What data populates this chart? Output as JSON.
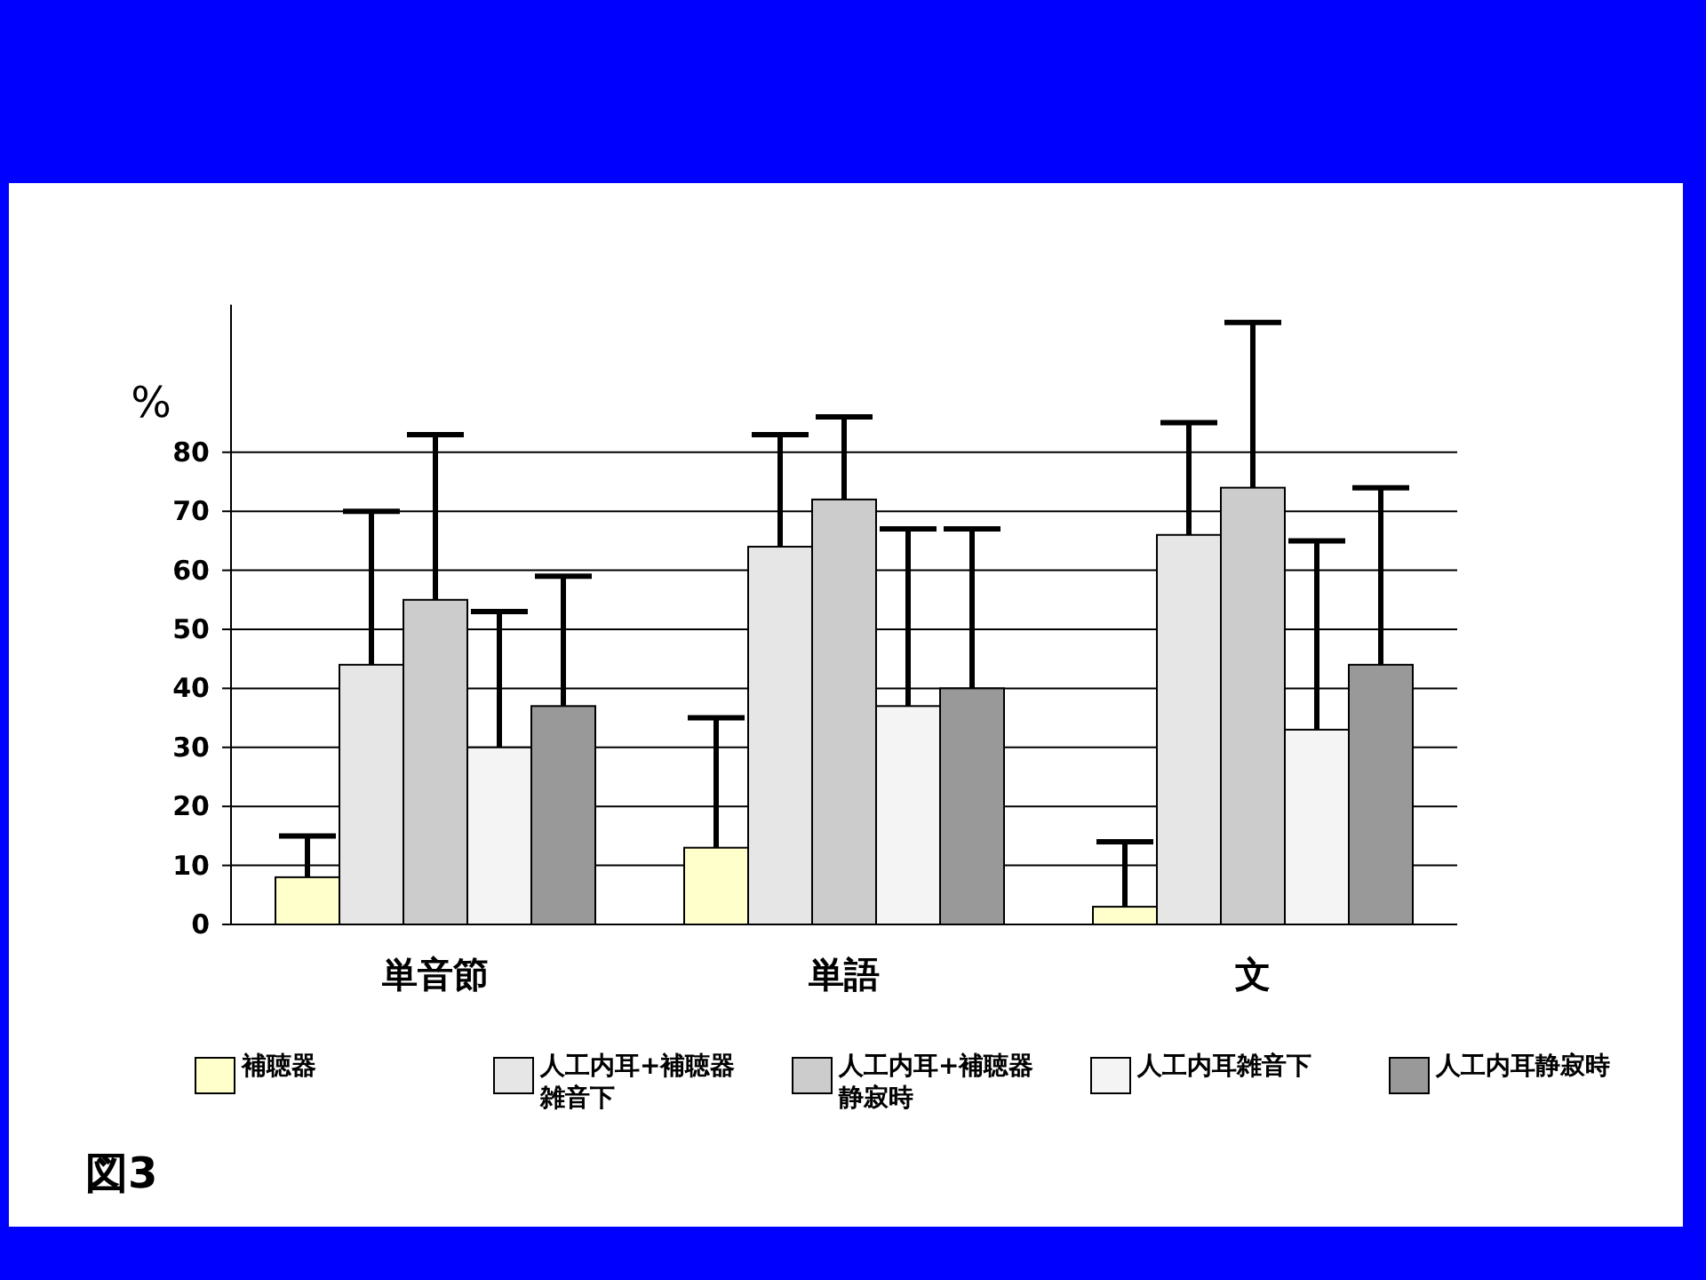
{
  "chart_data": {
    "type": "bar",
    "ylabel": "%",
    "categories": [
      "単音節",
      "単語",
      "文"
    ],
    "series": [
      {
        "name": "補聴器",
        "color": "#ffffcc",
        "values": [
          8,
          13,
          3
        ],
        "errors": [
          7,
          22,
          11
        ]
      },
      {
        "name": "人工内耳+補聴器雑音下",
        "color": "#e6e6e6",
        "values": [
          44,
          64,
          66
        ],
        "errors": [
          26,
          19,
          19
        ]
      },
      {
        "name": "人工内耳+補聴器静寂時",
        "color": "#cccccc",
        "values": [
          55,
          72,
          74
        ],
        "errors": [
          28,
          14,
          28
        ]
      },
      {
        "name": "人工内耳雑音下",
        "color": "#f4f4f4",
        "values": [
          30,
          37,
          33
        ],
        "errors": [
          23,
          30,
          32
        ]
      },
      {
        "name": "人工内耳静寂時",
        "color": "#999999",
        "values": [
          37,
          40,
          44
        ],
        "errors": [
          22,
          27,
          30
        ]
      }
    ],
    "ylim": [
      0,
      105
    ],
    "yticks": [
      0,
      10,
      20,
      30,
      40,
      50,
      60,
      70,
      80
    ],
    "grid": "y",
    "legend": "bottom",
    "annotations": [
      "図3"
    ]
  }
}
